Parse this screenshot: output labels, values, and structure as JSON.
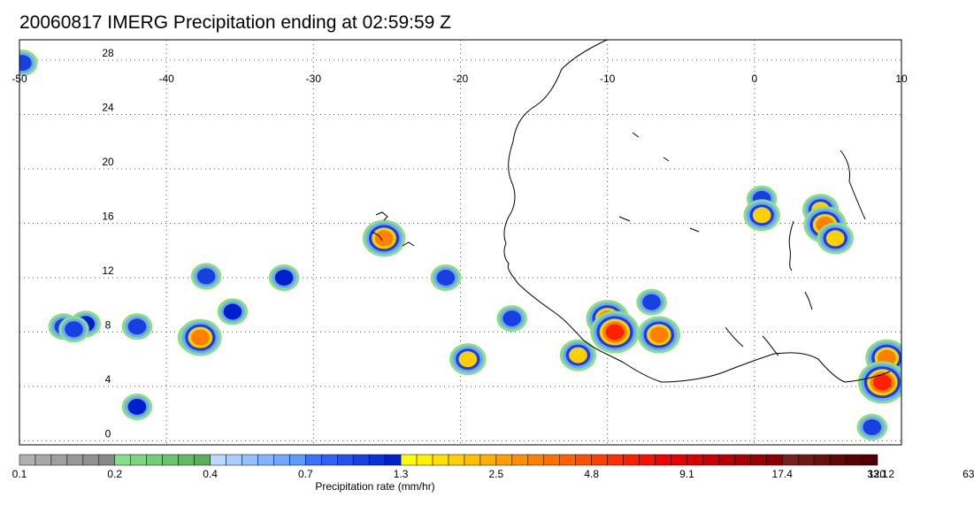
{
  "title": "20060817 IMERG Precipitation ending at 02:59:59 Z",
  "map": {
    "lon_range": [
      -50,
      10
    ],
    "lat_range": [
      -0.3,
      29.5
    ],
    "lon_ticks": [
      -50,
      -40,
      -30,
      -20,
      -10,
      0,
      10
    ],
    "lat_ticks": [
      0,
      4,
      8,
      12,
      16,
      20,
      24,
      28
    ],
    "gridlines": "dotted",
    "coastline_color": "#000000"
  },
  "colorbar": {
    "title": "Precipitation rate (mm/hr)",
    "tick_labels": [
      "0.1",
      "0.2",
      "0.4",
      "0.7",
      "1.3",
      "2.5",
      "4.8",
      "9.1",
      "17.4",
      "33.1",
      "63.1",
      "120.2"
    ],
    "colors": [
      "#b0b0b0",
      "#a8a8a8",
      "#a0a0a0",
      "#989898",
      "#909090",
      "#888888",
      "#88dd88",
      "#7fd47f",
      "#76cb76",
      "#6dc26d",
      "#64b964",
      "#5bb05b",
      "#c0d8ff",
      "#acccff",
      "#98c0ff",
      "#84b4ff",
      "#70a8ff",
      "#5c9cff",
      "#3c70ff",
      "#3060f5",
      "#2450eb",
      "#1840e1",
      "#0c30d7",
      "#0020cd",
      "#ffff00",
      "#fff000",
      "#ffe000",
      "#ffd000",
      "#ffc000",
      "#ffb000",
      "#ffa000",
      "#ff9000",
      "#ff8000",
      "#ff7000",
      "#ff6000",
      "#ff5000",
      "#ff4000",
      "#ff3000",
      "#ff2000",
      "#f81000",
      "#f00000",
      "#e80000",
      "#d80000",
      "#c80000",
      "#b80000",
      "#a80000",
      "#980000",
      "#880000",
      "#782020",
      "#701818",
      "#681010",
      "#600808",
      "#580000",
      "#500000"
    ]
  },
  "precip_cells": [
    {
      "lon": -49.8,
      "lat": 27.8,
      "level": "blue"
    },
    {
      "lon": -47,
      "lat": 8.4,
      "level": "blue"
    },
    {
      "lon": -45.5,
      "lat": 8.6,
      "level": "navy"
    },
    {
      "lon": -42,
      "lat": 8.4,
      "level": "blue"
    },
    {
      "lon": -38,
      "lat": 7.6,
      "level": "yellow"
    },
    {
      "lon": -37.7,
      "lat": 7.6,
      "level": "orange"
    },
    {
      "lon": -37.3,
      "lat": 12.1,
      "level": "blue"
    },
    {
      "lon": -35.5,
      "lat": 9.5,
      "level": "navy"
    },
    {
      "lon": -32,
      "lat": 12.0,
      "level": "navy"
    },
    {
      "lon": -25.2,
      "lat": 14.9,
      "level": "orange"
    },
    {
      "lon": -21,
      "lat": 12.0,
      "level": "blue"
    },
    {
      "lon": -19.5,
      "lat": 6.0,
      "level": "yellow"
    },
    {
      "lon": -16.5,
      "lat": 9.0,
      "level": "blue"
    },
    {
      "lon": -12,
      "lat": 6.3,
      "level": "yellow"
    },
    {
      "lon": -10,
      "lat": 9.0,
      "level": "orange"
    },
    {
      "lon": -9.5,
      "lat": 8.0,
      "level": "red"
    },
    {
      "lon": -6.5,
      "lat": 7.8,
      "level": "orange"
    },
    {
      "lon": -7,
      "lat": 10.2,
      "level": "blue"
    },
    {
      "lon": 0.5,
      "lat": 17.8,
      "level": "blue"
    },
    {
      "lon": 0.5,
      "lat": 16.6,
      "level": "yellow"
    },
    {
      "lon": 4.5,
      "lat": 17.0,
      "level": "yellow"
    },
    {
      "lon": 4.8,
      "lat": 15.9,
      "level": "orange"
    },
    {
      "lon": 5.5,
      "lat": 14.9,
      "level": "yellow"
    },
    {
      "lon": 9,
      "lat": 6.1,
      "level": "orange"
    },
    {
      "lon": 8.7,
      "lat": 4.3,
      "level": "red"
    },
    {
      "lon": 8.0,
      "lat": 1.0,
      "level": "blue"
    },
    {
      "lon": -42,
      "lat": 2.5,
      "level": "navy"
    },
    {
      "lon": -46.3,
      "lat": 8.2,
      "level": "blue"
    }
  ]
}
